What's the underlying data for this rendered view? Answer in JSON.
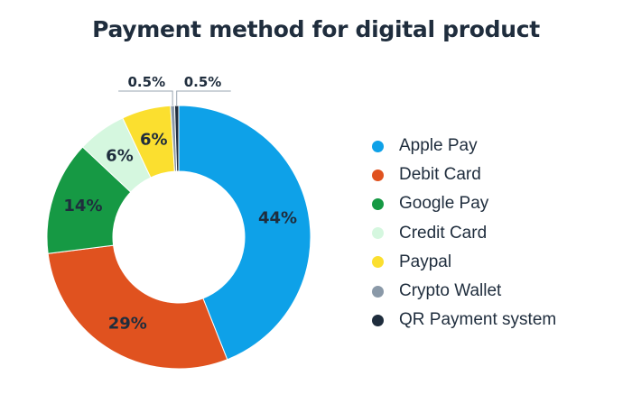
{
  "chart_data": {
    "type": "pie",
    "title": "Payment method for digital product",
    "donut": true,
    "legend_position": "right",
    "labels": [
      "Apple Pay",
      "Debit Card",
      "Google Pay",
      "Credit Card",
      "Paypal",
      "Crypto Wallet",
      "QR Payment system"
    ],
    "values": [
      44,
      29,
      14,
      6,
      6,
      0.5,
      0.5
    ],
    "value_labels": [
      "44%",
      "29%",
      "14%",
      "6%",
      "6%",
      "0.5%",
      "0.5%"
    ],
    "colors": [
      "#0ea1e8",
      "#e0521f",
      "#169944",
      "#d5f7df",
      "#fbdf2f",
      "#8a99a8",
      "#1f2d3d"
    ]
  }
}
